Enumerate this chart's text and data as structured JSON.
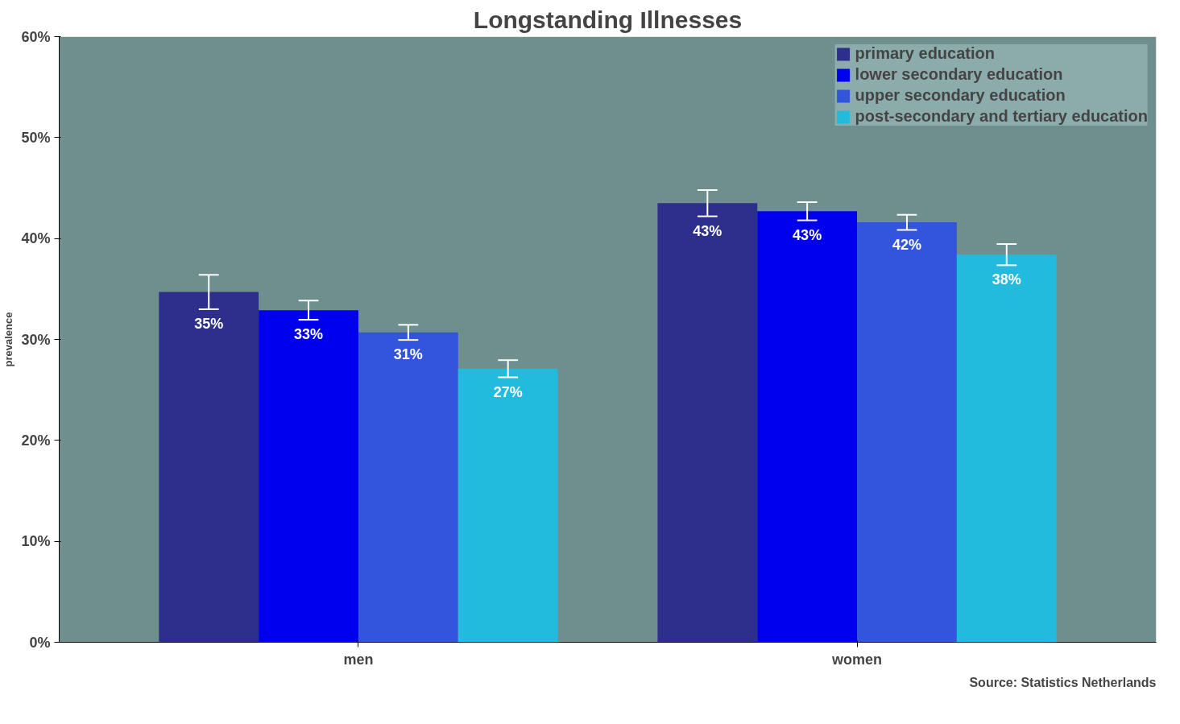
{
  "chart_data": {
    "type": "bar",
    "title": "Longstanding Illnesses",
    "ylabel": "prevalence",
    "categories": [
      "men",
      "women"
    ],
    "series": [
      {
        "name": "primary education",
        "color": "#2e2e8c",
        "values": [
          34.7,
          43.5
        ],
        "errors": [
          1.7,
          1.3
        ],
        "value_labels": [
          "35%",
          "43%"
        ]
      },
      {
        "name": "lower secondary education",
        "color": "#0000ee",
        "values": [
          32.9,
          42.7
        ],
        "errors": [
          0.95,
          0.9
        ],
        "value_labels": [
          "33%",
          "43%"
        ]
      },
      {
        "name": "upper secondary education",
        "color": "#3355dd",
        "values": [
          30.7,
          41.6
        ],
        "errors": [
          0.75,
          0.75
        ],
        "value_labels": [
          "31%",
          "42%"
        ]
      },
      {
        "name": "post-secondary and tertiary education",
        "color": "#22bbdd",
        "values": [
          27.1,
          38.4
        ],
        "errors": [
          0.85,
          1.05
        ],
        "value_labels": [
          "27%",
          "38%"
        ]
      }
    ],
    "ylim": [
      0,
      60
    ],
    "yticks": [
      {
        "value": 0,
        "label": "0%"
      },
      {
        "value": 10,
        "label": "10%"
      },
      {
        "value": 20,
        "label": "20%"
      },
      {
        "value": 30,
        "label": "30%"
      },
      {
        "value": 40,
        "label": "40%"
      },
      {
        "value": 50,
        "label": "50%"
      },
      {
        "value": 60,
        "label": "60%"
      }
    ],
    "grid": false,
    "legend": "top right",
    "annotations": [
      "Source: Statistics Netherlands"
    ]
  }
}
